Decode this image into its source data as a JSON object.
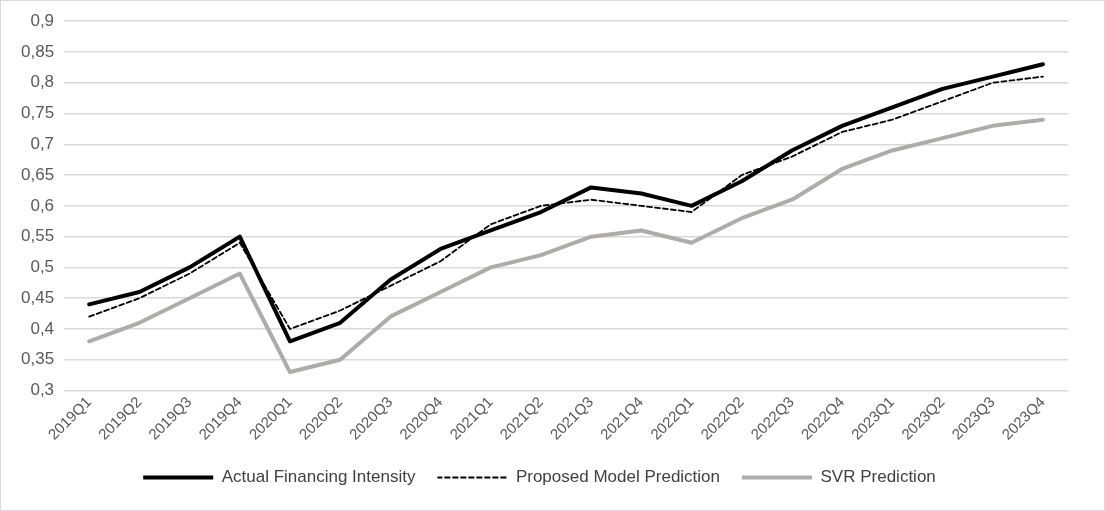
{
  "chart_data": {
    "type": "line",
    "categories": [
      "2019Q1",
      "2019Q2",
      "2019Q3",
      "2019Q4",
      "2020Q1",
      "2020Q2",
      "2020Q3",
      "2020Q4",
      "2021Q1",
      "2021Q2",
      "2021Q3",
      "2021Q4",
      "2022Q1",
      "2022Q2",
      "2022Q3",
      "2022Q4",
      "2023Q1",
      "2023Q2",
      "2023Q3",
      "2023Q4"
    ],
    "series": [
      {
        "name": "Actual Financing Intensity",
        "color": "#000000",
        "line_style": "solid",
        "values": [
          0.44,
          0.46,
          0.5,
          0.55,
          0.38,
          0.41,
          0.48,
          0.53,
          0.56,
          0.59,
          0.63,
          0.62,
          0.6,
          0.64,
          0.69,
          0.73,
          0.76,
          0.79,
          0.81,
          0.83
        ]
      },
      {
        "name": "Proposed Model Prediction",
        "color": "#000000",
        "line_style": "dashed",
        "values": [
          0.42,
          0.45,
          0.49,
          0.54,
          0.4,
          0.43,
          0.47,
          0.51,
          0.57,
          0.6,
          0.61,
          0.6,
          0.59,
          0.65,
          0.68,
          0.72,
          0.74,
          0.77,
          0.8,
          0.81
        ]
      },
      {
        "name": "SVR Prediction",
        "color": "#afabab",
        "line_style": "solid",
        "values": [
          0.38,
          0.41,
          0.45,
          0.49,
          0.33,
          0.35,
          0.42,
          0.46,
          0.5,
          0.52,
          0.55,
          0.56,
          0.54,
          0.58,
          0.61,
          0.66,
          0.69,
          0.71,
          0.73,
          0.74
        ]
      }
    ],
    "ylim": [
      0.3,
      0.9
    ],
    "yticks": [
      {
        "value": 0.3,
        "label": "0,3"
      },
      {
        "value": 0.35,
        "label": "0,35"
      },
      {
        "value": 0.4,
        "label": "0,4"
      },
      {
        "value": 0.45,
        "label": "0,45"
      },
      {
        "value": 0.5,
        "label": "0,5"
      },
      {
        "value": 0.55,
        "label": "0,55"
      },
      {
        "value": 0.6,
        "label": "0,6"
      },
      {
        "value": 0.65,
        "label": "0,65"
      },
      {
        "value": 0.7,
        "label": "0,7"
      },
      {
        "value": 0.75,
        "label": "0,75"
      },
      {
        "value": 0.8,
        "label": "0,8"
      },
      {
        "value": 0.85,
        "label": "0,85"
      },
      {
        "value": 0.9,
        "label": "0,9"
      }
    ],
    "grid": "y",
    "legend": "bottom",
    "marker": "none"
  }
}
